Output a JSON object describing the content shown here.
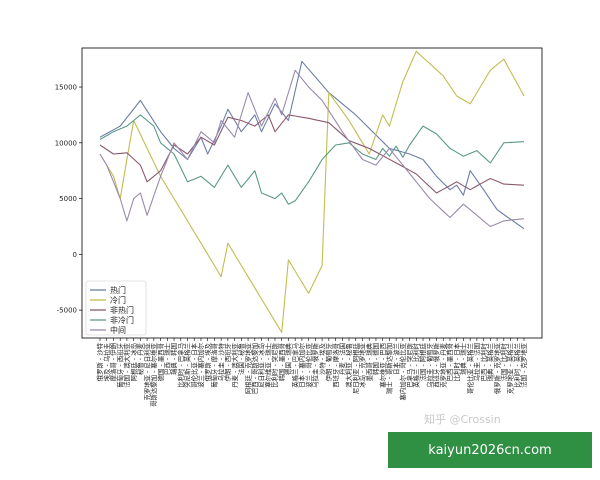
{
  "chart_data": {
    "type": "line",
    "title": "",
    "xlabel": "",
    "ylabel": "",
    "ylim": [
      -7500,
      18500
    ],
    "yticks": [
      -5000,
      0,
      5000,
      10000,
      15000
    ],
    "grid": false,
    "legend_position": "bottom-left",
    "categories": [
      "俄罗斯 - 沙特",
      "埃及 - 乌拉圭",
      "摩洛哥 - 伊朗",
      "葡萄牙 - 西班牙",
      "法国 - 澳大利亚",
      "阿根廷 - 冰岛",
      "秘鲁 - 丹麦",
      "克罗地亚 - 尼日利亚",
      "哥斯达黎加 - 塞尔维亚",
      "德国 - 墨西哥",
      "巴西 - 瑞士",
      "瑞典 - 韩国",
      "比利时 - 巴拿马",
      "突尼斯 - 英格兰",
      "哥伦比亚 - 日本",
      "波兰 - 塞内加尔",
      "俄罗斯 - 埃及",
      "葡萄牙 - 摩洛哥",
      "乌拉圭 - 沙特",
      "伊朗 - 西班牙",
      "丹麦 - 澳大利亚",
      "法国 - 秘鲁",
      "阿根廷 - 克罗地亚",
      "巴西 - 哥斯达黎加",
      "尼日利亚 - 冰岛",
      "塞尔维亚 - 瑞士",
      "比利时 - 突尼斯",
      "韩国 - 墨西哥",
      "德国 - 瑞典",
      "英格兰 - 巴拿马",
      "日本 - 塞内加尔",
      "波兰 - 哥伦比亚",
      "乌拉圭 - 俄罗斯",
      "沙特 - 埃及",
      "伊朗 - 葡萄牙",
      "西班牙 - 摩洛哥",
      "丹麦 - 法国",
      "澳大利亚 - 秘鲁",
      "尼日利亚 - 阿根廷",
      "冰岛 - 克罗地亚",
      "墨西哥 - 瑞典",
      "韩国 - 德国",
      "塞尔维亚 - 巴西",
      "瑞士 - 哥斯达黎加",
      "日本 - 波兰",
      "塞内加尔 - 哥伦比亚",
      "巴拿马 - 突尼斯",
      "英格兰 - 比利时",
      "法国 - 阿根廷",
      "乌拉圭 - 葡萄牙",
      "西班牙 - 俄罗斯",
      "克罗地亚 - 丹麦",
      "巴西 - 墨西哥",
      "比利时 - 日本",
      "瑞典 - 瑞士",
      "哥伦比亚 - 英格兰",
      "乌拉圭 - 法国",
      "巴西 - 比利时",
      "瑞典 - 英格兰",
      "俄罗斯 - 克罗地亚",
      "法国 - 比利时",
      "克罗地亚 - 英格兰",
      "比利时 - 英格兰",
      "法国 - 克罗地亚"
    ],
    "series": [
      {
        "name": "热门",
        "color": "#6b7fa8",
        "anchors": [
          [
            0,
            10500
          ],
          [
            3,
            11500
          ],
          [
            6,
            13800
          ],
          [
            9,
            11000
          ],
          [
            11,
            9500
          ],
          [
            13,
            8500
          ],
          [
            15,
            10500
          ],
          [
            16,
            9000
          ],
          [
            18,
            11500
          ],
          [
            19,
            13000
          ],
          [
            21,
            11000
          ],
          [
            23,
            12500
          ],
          [
            24,
            11000
          ],
          [
            26,
            13500
          ],
          [
            28,
            12000
          ],
          [
            30,
            17300
          ],
          [
            34,
            14500
          ],
          [
            38,
            12500
          ],
          [
            43,
            9500
          ],
          [
            46,
            9000
          ],
          [
            48,
            8500
          ],
          [
            50,
            7000
          ],
          [
            52,
            5800
          ],
          [
            53,
            6200
          ],
          [
            54,
            5300
          ],
          [
            55,
            7500
          ],
          [
            57,
            5800
          ],
          [
            59,
            4000
          ],
          [
            63,
            2300
          ]
        ]
      },
      {
        "name": "冷门",
        "color": "#c2bd52",
        "anchors": [
          [
            0,
            9000
          ],
          [
            2,
            7000
          ],
          [
            3,
            5000
          ],
          [
            5,
            12000
          ],
          [
            9,
            7000
          ],
          [
            16,
            0
          ],
          [
            18,
            -2000
          ],
          [
            19,
            1000
          ],
          [
            26,
            -6000
          ],
          [
            27,
            -7000
          ],
          [
            28,
            -500
          ],
          [
            31,
            -3500
          ],
          [
            33,
            -1000
          ],
          [
            34,
            14500
          ],
          [
            37,
            12000
          ],
          [
            40,
            9000
          ],
          [
            42,
            12500
          ],
          [
            43,
            11500
          ],
          [
            45,
            15500
          ],
          [
            47,
            18200
          ],
          [
            51,
            16000
          ],
          [
            53,
            14200
          ],
          [
            55,
            13500
          ],
          [
            58,
            16500
          ],
          [
            60,
            17500
          ],
          [
            63,
            14200
          ]
        ]
      },
      {
        "name": "非热门",
        "color": "#8a5a6e",
        "anchors": [
          [
            0,
            9800
          ],
          [
            2,
            9000
          ],
          [
            4,
            9100
          ],
          [
            6,
            8000
          ],
          [
            7,
            6500
          ],
          [
            9,
            7500
          ],
          [
            11,
            9800
          ],
          [
            13,
            9000
          ],
          [
            15,
            10500
          ],
          [
            17,
            9800
          ],
          [
            19,
            12300
          ],
          [
            21,
            12000
          ],
          [
            23,
            11500
          ],
          [
            25,
            12500
          ],
          [
            26,
            11000
          ],
          [
            28,
            12500
          ],
          [
            31,
            12200
          ],
          [
            34,
            11800
          ],
          [
            37,
            10200
          ],
          [
            40,
            9500
          ],
          [
            44,
            8200
          ],
          [
            47,
            7200
          ],
          [
            50,
            5500
          ],
          [
            53,
            6500
          ],
          [
            55,
            5800
          ],
          [
            58,
            6800
          ],
          [
            60,
            6300
          ],
          [
            63,
            6200
          ]
        ]
      },
      {
        "name": "非冷门",
        "color": "#5a9a84",
        "anchors": [
          [
            0,
            10300
          ],
          [
            2,
            11000
          ],
          [
            4,
            11500
          ],
          [
            6,
            12500
          ],
          [
            8,
            11500
          ],
          [
            9,
            10000
          ],
          [
            11,
            9000
          ],
          [
            13,
            6500
          ],
          [
            15,
            7000
          ],
          [
            17,
            6000
          ],
          [
            19,
            8000
          ],
          [
            21,
            6000
          ],
          [
            23,
            7500
          ],
          [
            24,
            5500
          ],
          [
            26,
            5000
          ],
          [
            27,
            5500
          ],
          [
            28,
            4500
          ],
          [
            29,
            4800
          ],
          [
            31,
            6500
          ],
          [
            33,
            8500
          ],
          [
            35,
            9800
          ],
          [
            37,
            10000
          ],
          [
            39,
            9000
          ],
          [
            41,
            8500
          ],
          [
            42,
            9500
          ],
          [
            43,
            8800
          ],
          [
            44,
            9700
          ],
          [
            45,
            8700
          ],
          [
            46,
            9800
          ],
          [
            48,
            11500
          ],
          [
            50,
            10800
          ],
          [
            52,
            9500
          ],
          [
            54,
            8800
          ],
          [
            56,
            9300
          ],
          [
            58,
            8200
          ],
          [
            60,
            10000
          ],
          [
            63,
            10100
          ]
        ]
      },
      {
        "name": "中间",
        "color": "#9a8aac",
        "anchors": [
          [
            0,
            9000
          ],
          [
            1,
            8000
          ],
          [
            2,
            6500
          ],
          [
            3,
            5000
          ],
          [
            4,
            3000
          ],
          [
            5,
            5000
          ],
          [
            6,
            5500
          ],
          [
            7,
            3500
          ],
          [
            9,
            7000
          ],
          [
            11,
            10000
          ],
          [
            13,
            8500
          ],
          [
            15,
            11000
          ],
          [
            17,
            10000
          ],
          [
            18,
            12000
          ],
          [
            20,
            10500
          ],
          [
            22,
            14500
          ],
          [
            24,
            11500
          ],
          [
            26,
            14000
          ],
          [
            27,
            12500
          ],
          [
            29,
            16500
          ],
          [
            31,
            15000
          ],
          [
            33,
            13800
          ],
          [
            36,
            11000
          ],
          [
            39,
            8500
          ],
          [
            41,
            8000
          ],
          [
            43,
            9500
          ],
          [
            45,
            8000
          ],
          [
            47,
            6500
          ],
          [
            49,
            5000
          ],
          [
            52,
            3300
          ],
          [
            54,
            4500
          ],
          [
            56,
            3500
          ],
          [
            58,
            2500
          ],
          [
            60,
            3000
          ],
          [
            63,
            3200
          ]
        ]
      }
    ]
  },
  "watermark": "知乎 @Crossin",
  "banner": "kaiyun2026cn.com"
}
